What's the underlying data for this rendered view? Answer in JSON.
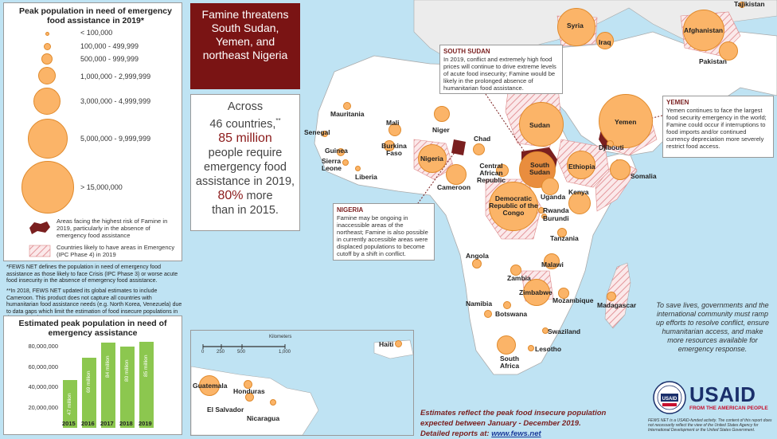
{
  "legend": {
    "title": "Peak population in need of emergency food assistance in 2019*",
    "sizes": [
      "< 100,000",
      "100,000 - 499,999",
      "500,000 - 999,999",
      "1,000,000 - 2,999,999",
      "3,000,000 - 4,999,999",
      "5,000,000 - 9,999,999",
      "> 15,000,000"
    ],
    "famine_risk": "Areas facing the highest risk of Famine in 2019, particularly in the absence of emergency food assistance",
    "emergency": "Countries likely to have areas in Emergency (IPC Phase 4) in 2019",
    "note1": "*FEWS NET defines the population in need of emergency food assistance as those likely to face Crisis (IPC Phase 3) or worse acute food insecurity in the absence of emergency food assistance.",
    "note2": "**In 2018, FEWS NET updated its global estimates to include Cameroon. This product does not capture all countries with humanitarian food assistance needs (e.g. North Korea, Venezuela) due to data gaps which limit the estimation of food insecure populations in these countries."
  },
  "famine_box": {
    "text": "Famine threatens South Sudan, Yemen, and northeast Nigeria"
  },
  "stats": {
    "l1": "Across",
    "l2": "46 countries,",
    "l2sup": "**",
    "l3": "85 million",
    "l4": "people require",
    "l5": "emergency food",
    "l6": "assistance in 2019,",
    "l7a": "80%",
    "l7b": " more",
    "l8": "than in 2015."
  },
  "chart_data": {
    "type": "bar",
    "title": "Estimated peak population in need of emergency assistance",
    "categories": [
      "2015",
      "2016",
      "2017",
      "2018",
      "2019"
    ],
    "values": [
      47000000,
      69000000,
      84000000,
      80000000,
      85000000
    ],
    "value_labels": [
      "47 million",
      "69 million",
      "84 million",
      "80 million",
      "85 million"
    ],
    "yticks": [
      "80,000,000",
      "60,000,000",
      "40,000,000",
      "20,000,000"
    ],
    "ytick_values": [
      80000000,
      60000000,
      40000000,
      20000000
    ],
    "ylim": [
      0,
      88000000
    ],
    "color": "#8cc74f"
  },
  "callouts": {
    "south_sudan": {
      "title": "SOUTH SUDAN",
      "text": "In 2019, conflict and extremely high food prices will continue to drive extreme levels of acute food insecurity; Famine would be likely in the prolonged absence of humanitarian food assistance."
    },
    "yemen": {
      "title": "YEMEN",
      "text": "Yemen continues to face the largest food security emergency in the world; Famine could occur if interruptions to food imports and/or continued currency depreciation more severely restrict food access."
    },
    "nigeria": {
      "title": "NIGERIA",
      "text": "Famine may be ongoing in inaccessible areas of the northeast; Famine is also possible in currently accessible areas were displaced populations to become cutoff by a shift in conflict."
    }
  },
  "countries": [
    {
      "name": "Syria"
    },
    {
      "name": "Iraq"
    },
    {
      "name": "Afghanistan"
    },
    {
      "name": "Pakistan"
    },
    {
      "name": "Tajikistan"
    },
    {
      "name": "Sudan"
    },
    {
      "name": "Yemen"
    },
    {
      "name": "Djibouti"
    },
    {
      "name": "Somalia"
    },
    {
      "name": "Ethiopia"
    },
    {
      "name": "South Sudan"
    },
    {
      "name": "Kenya"
    },
    {
      "name": "Uganda"
    },
    {
      "name": "Rwanda"
    },
    {
      "name": "Burundi"
    },
    {
      "name": "Tanzania"
    },
    {
      "name": "Democratic Republic of the Congo"
    },
    {
      "name": "Central African Republic"
    },
    {
      "name": "Chad"
    },
    {
      "name": "Niger"
    },
    {
      "name": "Nigeria"
    },
    {
      "name": "Cameroon"
    },
    {
      "name": "Mali"
    },
    {
      "name": "Mauritania"
    },
    {
      "name": "Senegal"
    },
    {
      "name": "Guinea"
    },
    {
      "name": "Sierra Leone"
    },
    {
      "name": "Liberia"
    },
    {
      "name": "Burkina Faso"
    },
    {
      "name": "Angola"
    },
    {
      "name": "Zambia"
    },
    {
      "name": "Malawi"
    },
    {
      "name": "Zimbabwe"
    },
    {
      "name": "Mozambique"
    },
    {
      "name": "Madagascar"
    },
    {
      "name": "Namibia"
    },
    {
      "name": "Botswana"
    },
    {
      "name": "Swaziland"
    },
    {
      "name": "Lesotho"
    },
    {
      "name": "South Africa"
    },
    {
      "name": "Haiti"
    },
    {
      "name": "Guatemala"
    },
    {
      "name": "Honduras"
    },
    {
      "name": "El Salvador"
    },
    {
      "name": "Nicaragua"
    }
  ],
  "scale": {
    "label": "Kilometers",
    "ticks": [
      "0",
      "250",
      "500",
      "1,000"
    ]
  },
  "appeal": "To save lives, governments and the international community must ramp up efforts to resolve conflict, ensure humanitarian access, and make more resources available for emergency response.",
  "footer": {
    "line1": "Estimates reflect the peak food insecure population",
    "line2": "expected between January - December 2019.",
    "line3a": "Detailed reports at: ",
    "link": "www.fews.net"
  },
  "usaid": {
    "name": "USAID",
    "tagline": "FROM THE AMERICAN PEOPLE",
    "seal_text": "USAID",
    "disclaimer": "FEWS NET is a USAID-funded activity. The content of this report does not necessarily reflect the view of the United States Agency for International Development or the United States Government."
  }
}
